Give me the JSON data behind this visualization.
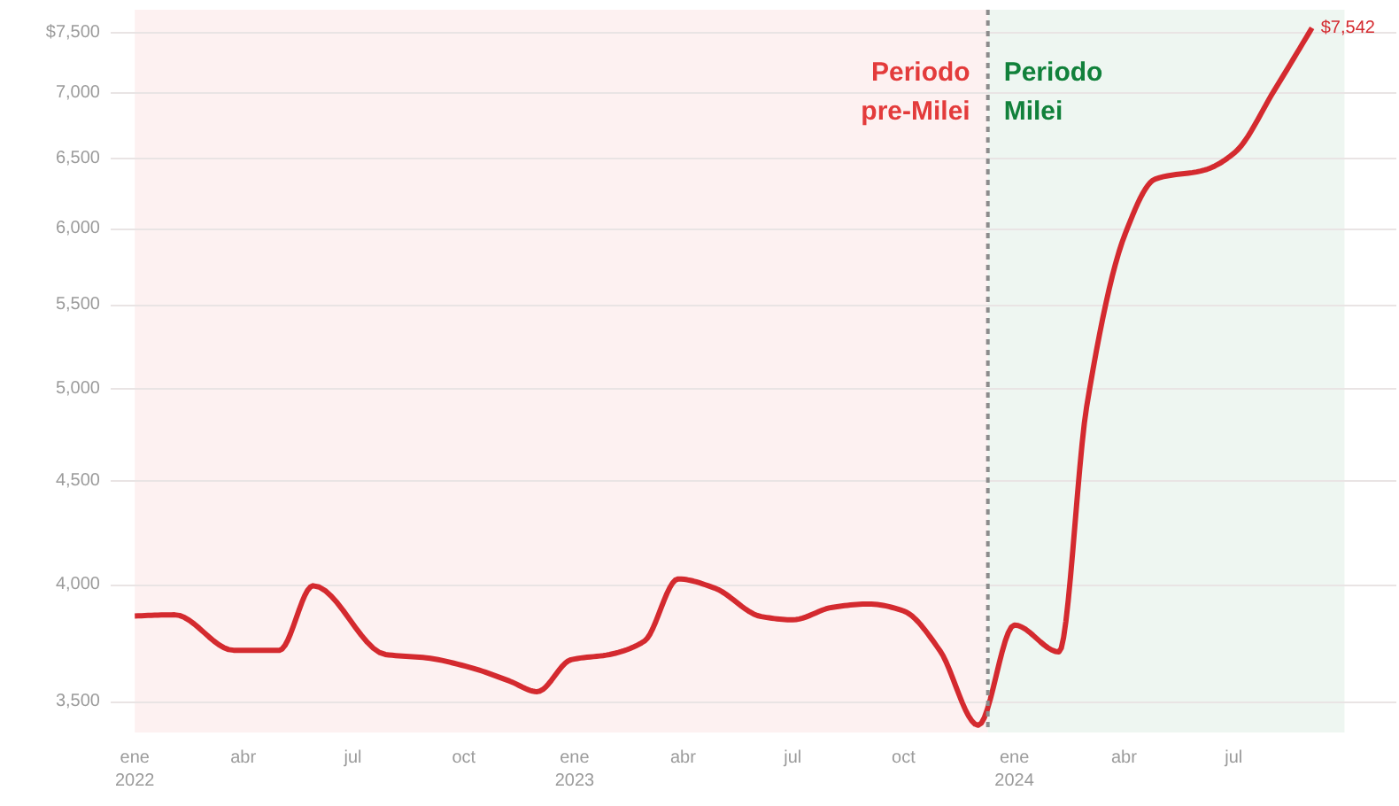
{
  "chart_data": {
    "type": "line",
    "x": [
      "2022-01-01",
      "2022-02-03",
      "2022-03-24",
      "2022-05-01",
      "2022-05-29",
      "2022-07-28",
      "2022-08-31",
      "2022-10-09",
      "2022-11-08",
      "2022-12-01",
      "2022-12-29",
      "2023-01-30",
      "2023-02-28",
      "2023-03-28",
      "2023-04-27",
      "2023-06-05",
      "2023-07-01",
      "2023-08-03",
      "2023-09-02",
      "2023-10-01",
      "2023-10-31",
      "2023-12-02",
      "2024-01-01",
      "2024-02-07",
      "2024-03-01",
      "2024-04-02",
      "2024-04-27",
      "2024-06-07",
      "2024-07-02",
      "2024-08-04",
      "2024-09-04"
    ],
    "series": [
      {
        "color": "#d42a2f",
        "values": [
          3860,
          3865,
          3712,
          3712,
          3995,
          3694,
          3680,
          3636,
          3584,
          3541,
          3672,
          3694,
          3751,
          4026,
          3985,
          3857,
          3843,
          3898,
          3913,
          3882,
          3712,
          3408,
          3820,
          3705,
          4900,
          5966,
          6350,
          6415,
          6545,
          7029,
          7542
        ],
        "value_labels": [
          null,
          null,
          null,
          null,
          null,
          null,
          null,
          null,
          null,
          null,
          null,
          null,
          null,
          null,
          null,
          null,
          null,
          null,
          null,
          null,
          null,
          null,
          null,
          null,
          null,
          null,
          null,
          null,
          null,
          null,
          "$7,542"
        ]
      }
    ],
    "xlim": [
      "2021-12-12",
      "2024-11-13"
    ],
    "ylim": [
      3380,
      7700
    ],
    "log": true,
    "xticks": [
      {
        "value": "2022-01-01",
        "label": "ene\n2022"
      },
      {
        "value": "2022-04-01",
        "label": "abr"
      },
      {
        "value": "2022-07-01",
        "label": "jul"
      },
      {
        "value": "2022-10-01",
        "label": "oct"
      },
      {
        "value": "2023-01-01",
        "label": "ene\n2023"
      },
      {
        "value": "2023-04-01",
        "label": "abr"
      },
      {
        "value": "2023-07-01",
        "label": "jul"
      },
      {
        "value": "2023-10-01",
        "label": "oct"
      },
      {
        "value": "2024-01-01",
        "label": "ene\n2024"
      },
      {
        "value": "2024-04-01",
        "label": "abr"
      },
      {
        "value": "2024-07-01",
        "label": "jul"
      }
    ],
    "yticks": [
      {
        "value": 3500,
        "label": "3,500"
      },
      {
        "value": 4000,
        "label": "4,000"
      },
      {
        "value": 4500,
        "label": "4,500"
      },
      {
        "value": 5000,
        "label": "5,000"
      },
      {
        "value": 5500,
        "label": "5,500"
      },
      {
        "value": 6000,
        "label": "6,000"
      },
      {
        "value": 6500,
        "label": "6,500"
      },
      {
        "value": 7000,
        "label": "7,000"
      },
      {
        "value": 7500,
        "label": "$7,500"
      }
    ],
    "grid": "y",
    "line_style": "solid",
    "ref_lines": [
      {
        "axis": "x",
        "value": "2023-12-10",
        "color": "#8c8c8c",
        "line_style": "dotted"
      }
    ],
    "bands": [
      {
        "axis": "x",
        "from": "2022-01-01",
        "to": "2023-12-10",
        "label": "Periodo\npre-Milei",
        "color": "#fdf1f1"
      },
      {
        "axis": "x",
        "from": "2023-12-10",
        "to": "2024-10-01",
        "label": "Periodo\nMilei",
        "color": "#eef6f1"
      }
    ]
  }
}
